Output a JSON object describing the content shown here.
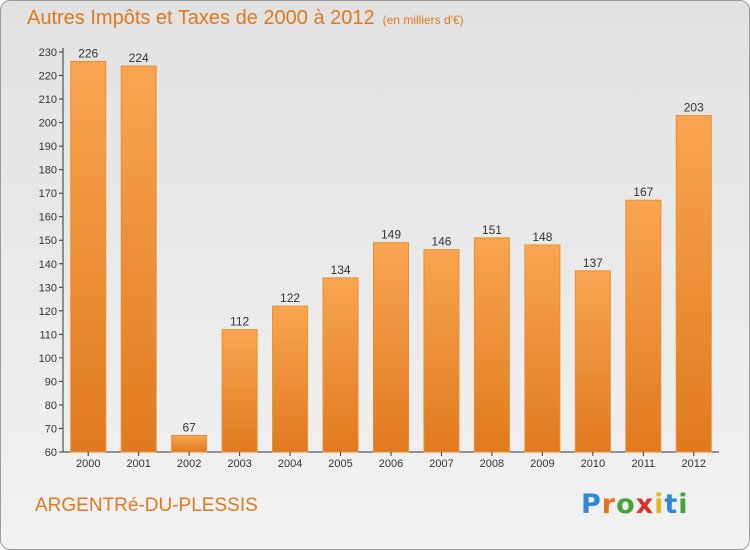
{
  "header": {
    "title": "Autres Impôts et Taxes de 2000 à 2012",
    "subtitle": "(en milliers d'€)"
  },
  "footer": {
    "city": "ARGENTRé-DU-PLESSIS",
    "logo_letters": [
      "P",
      "r",
      "o",
      "x",
      "i",
      "t",
      "i"
    ],
    "logo_colors": [
      "#2c8ad8",
      "#e8701a",
      "#4aa33a",
      "#d8302a",
      "#e8b81a",
      "#2c8ad8",
      "#4aa33a"
    ]
  },
  "colors": {
    "bar_light": "#f9a551",
    "bar_dark": "#e07a1f",
    "text_accent": "#e0781e",
    "axis": "#333333"
  },
  "chart_data": {
    "type": "bar",
    "categories": [
      "2000",
      "2001",
      "2002",
      "2003",
      "2004",
      "2005",
      "2006",
      "2007",
      "2008",
      "2009",
      "2010",
      "2011",
      "2012"
    ],
    "values": [
      226,
      224,
      67,
      112,
      122,
      134,
      149,
      146,
      151,
      148,
      137,
      167,
      203
    ],
    "ylim": [
      60,
      230
    ],
    "yticks": [
      60,
      70,
      80,
      90,
      100,
      110,
      120,
      130,
      140,
      150,
      160,
      170,
      180,
      190,
      200,
      210,
      220,
      230
    ],
    "grid": false,
    "data_labels": true
  }
}
